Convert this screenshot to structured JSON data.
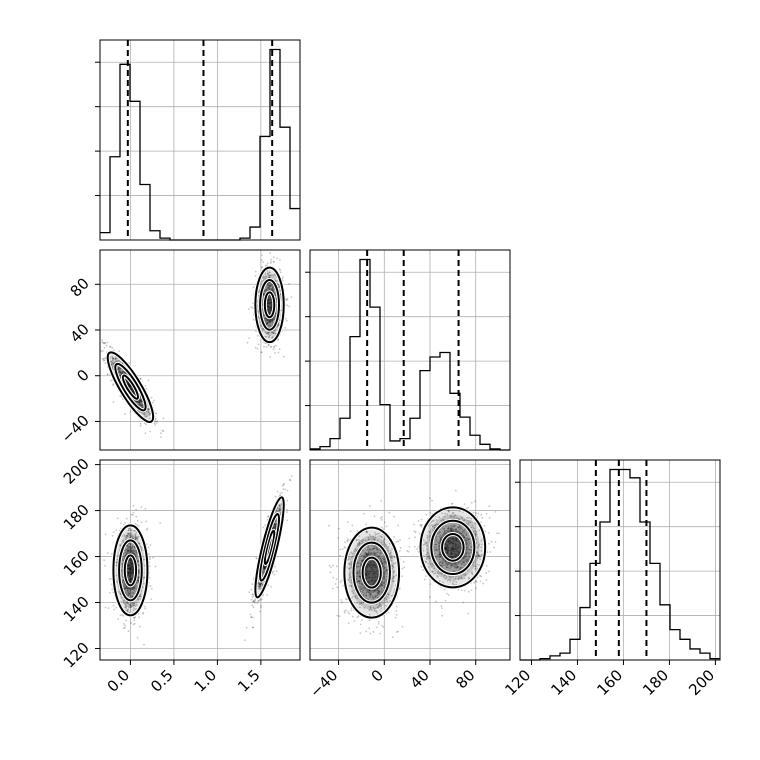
{
  "chart_data": {
    "type": "corner",
    "title": "",
    "parameters": [
      {
        "index": 0,
        "label": "",
        "range": [
          -0.35,
          1.95
        ],
        "ticks": [
          0.0,
          0.5,
          1.0,
          1.5
        ],
        "tick_labels": [
          "0.0",
          "0.5",
          "1.0",
          "1.5"
        ],
        "quantiles": [
          -0.03,
          0.84,
          1.63
        ]
      },
      {
        "index": 1,
        "label": "",
        "range": [
          -65,
          110
        ],
        "ticks": [
          -40,
          0,
          40,
          80
        ],
        "tick_labels": [
          "−40",
          "0",
          "40",
          "80"
        ],
        "quantiles": [
          -15,
          17,
          65
        ]
      },
      {
        "index": 2,
        "label": "",
        "range": [
          115,
          202
        ],
        "ticks": [
          120,
          140,
          160,
          180,
          200
        ],
        "tick_labels": [
          "120",
          "140",
          "160",
          "180",
          "200"
        ],
        "quantiles": [
          148,
          158,
          170
        ]
      }
    ],
    "histograms": [
      {
        "param": 0,
        "bins": [
          -0.35,
          -0.235,
          -0.12,
          -0.005,
          0.11,
          0.225,
          0.34,
          0.455,
          0.57,
          0.685,
          0.8,
          0.915,
          1.03,
          1.145,
          1.26,
          1.375,
          1.49,
          1.605,
          1.72,
          1.835,
          1.95
        ],
        "counts": [
          4,
          45,
          95,
          75,
          30,
          5,
          1,
          0,
          0,
          0,
          0,
          0,
          0,
          0,
          1,
          7,
          56,
          103,
          61,
          17
        ]
      },
      {
        "param": 1,
        "bins": [
          -65,
          -56.25,
          -47.5,
          -38.75,
          -30,
          -21.25,
          -12.5,
          -3.75,
          5,
          13.75,
          22.5,
          31.25,
          40,
          48.75,
          57.5,
          66.25,
          75,
          83.75,
          92.5,
          101.25,
          110
        ],
        "counts": [
          1,
          3,
          10,
          28,
          100,
          168,
          126,
          40,
          8,
          10,
          28,
          70,
          82,
          86,
          50,
          29,
          13,
          5,
          1,
          0
        ]
      },
      {
        "param": 2,
        "bins": [
          115,
          119.35,
          123.7,
          128.05,
          132.4,
          136.75,
          141.1,
          145.45,
          149.8,
          154.15,
          158.5,
          162.85,
          167.2,
          171.55,
          175.9,
          180.25,
          184.6,
          188.95,
          193.3,
          197.65,
          202
        ],
        "counts": [
          0,
          0,
          1,
          3,
          5,
          15,
          38,
          70,
          100,
          138,
          138,
          132,
          100,
          70,
          40,
          22,
          15,
          8,
          5,
          1
        ]
      }
    ],
    "contours_2d": [
      {
        "x_param": 0,
        "y_param": 1,
        "modes": [
          {
            "center": [
              0.0,
              -10
            ],
            "widths": [
              0.12,
              14
            ],
            "correlation": -0.85
          },
          {
            "center": [
              1.6,
              62
            ],
            "widths": [
              0.075,
              15
            ],
            "correlation": 0.0
          }
        ],
        "levels": [
          0.5,
          1.0,
          1.5
        ]
      },
      {
        "x_param": 0,
        "y_param": 2,
        "modes": [
          {
            "center": [
              0.0,
              154
            ],
            "widths": [
              0.09,
              9
            ],
            "correlation": 0.0
          },
          {
            "center": [
              1.6,
              164
            ],
            "widths": [
              0.075,
              10
            ],
            "correlation": 0.85
          }
        ],
        "levels": [
          0.5,
          1.0,
          1.5
        ]
      },
      {
        "x_param": 1,
        "y_param": 2,
        "modes": [
          {
            "center": [
              -11,
              153
            ],
            "widths": [
              11,
              9
            ],
            "correlation": 0.0
          },
          {
            "center": [
              60,
              164
            ],
            "widths": [
              13,
              8
            ],
            "correlation": 0.0
          }
        ],
        "levels": [
          0.5,
          1.0,
          1.5
        ]
      }
    ],
    "grid": true,
    "legend": "none"
  }
}
